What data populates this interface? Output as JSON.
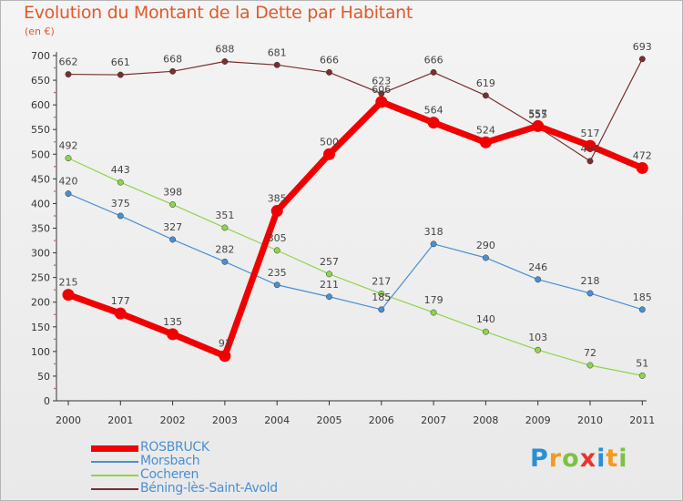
{
  "title": "Evolution du Montant de la Dette par Habitant",
  "unit": "(en €)",
  "logo": [
    "P",
    "r",
    "o",
    "x",
    "i",
    "t",
    "i"
  ],
  "logo_colors": [
    "#2a8fd6",
    "#f39a1f",
    "#7cc242",
    "#e8352e",
    "#2a8fd6",
    "#f39a1f",
    "#7cc242"
  ],
  "chart_data": {
    "type": "line",
    "title": "Evolution du Montant de la Dette par Habitant",
    "ylabel": "(en €)",
    "xlabel": "",
    "x": [
      "2000",
      "2001",
      "2002",
      "2003",
      "2004",
      "2005",
      "2006",
      "2007",
      "2008",
      "2009",
      "2010",
      "2011"
    ],
    "ylim": [
      0,
      700
    ],
    "yticks": [
      0,
      50,
      100,
      150,
      200,
      250,
      300,
      350,
      400,
      450,
      500,
      550,
      600,
      650,
      700
    ],
    "grid": false,
    "legend_position": "bottom-left",
    "series": [
      {
        "name": "ROSBRUCK",
        "color": "#f00000",
        "values": [
          215,
          177,
          135,
          91,
          385,
          500,
          606,
          564,
          524,
          557,
          517,
          472
        ]
      },
      {
        "name": "Morsbach",
        "color": "#4a8fd3",
        "values": [
          420,
          375,
          327,
          282,
          235,
          211,
          185,
          318,
          290,
          246,
          218,
          185
        ]
      },
      {
        "name": "Cocheren",
        "color": "#8fd44c",
        "values": [
          492,
          443,
          398,
          351,
          305,
          257,
          217,
          179,
          140,
          103,
          72,
          51
        ]
      },
      {
        "name": "Béning-lès-Saint-Avold",
        "color": "#7a2e2e",
        "values": [
          662,
          661,
          668,
          688,
          681,
          666,
          623,
          666,
          619,
          555,
          486,
          693
        ]
      }
    ]
  }
}
